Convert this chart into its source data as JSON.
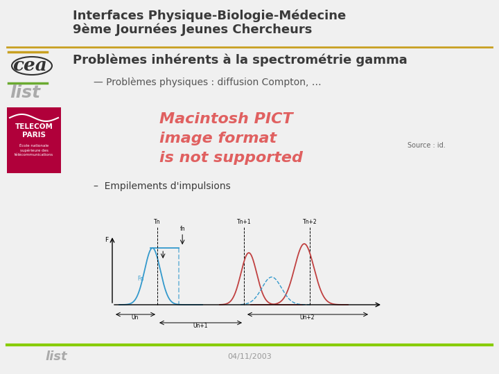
{
  "title_line1": "Interfaces Physique-Biologie-Médecine",
  "title_line2": "9ème Journées Jeunes Chercheurs",
  "title_color": "#3a3a3a",
  "title_fontsize": 13,
  "gold_line_color": "#c8a020",
  "green_line_color": "#6aaa30",
  "section_title": "Problèmes inhérents à la spectrométrie gamma",
  "section_title_color": "#3a3a3a",
  "section_title_fontsize": 13,
  "bullet1": "— Problèmes physiques : diffusion Compton, …",
  "bullet1_color": "#555555",
  "bullet1_fontsize": 10,
  "pict_line1": "Macintosh PICT",
  "pict_line2": "image format",
  "pict_line3": "is not supported",
  "pict_color": "#e06060",
  "pict_fontsize": 16,
  "source_text": "Source : id.",
  "source_fontsize": 7,
  "source_color": "#666666",
  "bullet2": "–  Empilements d'impulsions",
  "bullet2_color": "#3a3a3a",
  "bullet2_fontsize": 10,
  "date_text": "04/11/2003",
  "date_color": "#999999",
  "date_fontsize": 8,
  "bg_color": "#f0f0f0",
  "cea_color": "#333333",
  "list_color": "#aaaaaa",
  "telecom_bg": "#b0003a",
  "telecom_text": "#ffffff",
  "footer_green": "#88cc00",
  "footer_list_color": "#aaaaaa"
}
